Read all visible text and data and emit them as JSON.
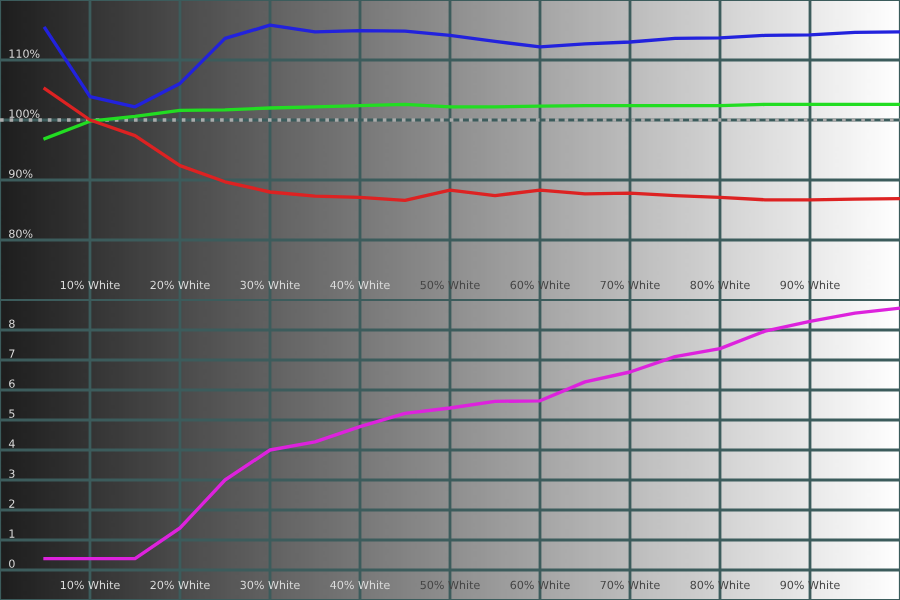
{
  "chart_data": [
    {
      "type": "line",
      "x": [
        5,
        10,
        15,
        20,
        25,
        30,
        35,
        40,
        45,
        50,
        55,
        60,
        65,
        70,
        75,
        80,
        85,
        90,
        95,
        100
      ],
      "series": [
        {
          "color": "#2222dd",
          "values": [
            115.3,
            103.9,
            102.2,
            106.1,
            113.6,
            115.8,
            114.7,
            114.9,
            114.8,
            114.1,
            113.1,
            112.2,
            112.7,
            113.0,
            113.6,
            113.7,
            114.1,
            114.2,
            114.6,
            114.7
          ]
        },
        {
          "color": "#22dd22",
          "values": [
            96.9,
            99.8,
            100.6,
            101.6,
            101.7,
            102.0,
            102.2,
            102.4,
            102.6,
            102.2,
            102.2,
            102.3,
            102.4,
            102.4,
            102.4,
            102.4,
            102.6,
            102.6,
            102.6,
            102.6
          ]
        },
        {
          "color": "#dd2222",
          "values": [
            105.2,
            100.0,
            97.4,
            92.4,
            89.7,
            88.0,
            87.3,
            87.1,
            86.6,
            88.3,
            87.4,
            88.3,
            87.7,
            87.8,
            87.4,
            87.1,
            86.7,
            86.7,
            86.8,
            86.9
          ]
        }
      ],
      "xlim": [
        0,
        100
      ],
      "ylim": [
        70,
        120
      ],
      "xticks": [
        {
          "value": 10,
          "label": "10% White"
        },
        {
          "value": 20,
          "label": "20% White"
        },
        {
          "value": 30,
          "label": "30% White"
        },
        {
          "value": 40,
          "label": "40% White"
        },
        {
          "value": 50,
          "label": "50% White"
        },
        {
          "value": 60,
          "label": "60% White"
        },
        {
          "value": 70,
          "label": "70% White"
        },
        {
          "value": 80,
          "label": "80% White"
        },
        {
          "value": 90,
          "label": "90% White"
        }
      ],
      "yticks": [
        {
          "value": 80,
          "label": "80%"
        },
        {
          "value": 90,
          "label": "90%"
        },
        {
          "value": 100,
          "label": "100%"
        },
        {
          "value": 110,
          "label": "110%"
        }
      ],
      "ref_lines": [
        {
          "axis": "y",
          "value": 100,
          "color": "#aaaaaa",
          "line_style": "dotted"
        }
      ],
      "grid": true,
      "line_style": "solid"
    },
    {
      "type": "line",
      "x": [
        5,
        10,
        15,
        20,
        25,
        30,
        35,
        40,
        45,
        50,
        55,
        60,
        65,
        70,
        75,
        80,
        85,
        90,
        95,
        100
      ],
      "series": [
        {
          "color": "#dd22dd",
          "values": [
            0.38,
            0.38,
            0.38,
            1.4,
            3.0,
            4.0,
            4.27,
            4.78,
            5.22,
            5.4,
            5.62,
            5.64,
            6.27,
            6.6,
            7.11,
            7.38,
            7.96,
            8.29,
            8.56,
            8.73
          ]
        }
      ],
      "xlim": [
        0,
        100
      ],
      "ylim": [
        -1,
        9
      ],
      "xticks": [
        {
          "value": 10,
          "label": "10% White"
        },
        {
          "value": 20,
          "label": "20% White"
        },
        {
          "value": 30,
          "label": "30% White"
        },
        {
          "value": 40,
          "label": "40% White"
        },
        {
          "value": 50,
          "label": "50% White"
        },
        {
          "value": 60,
          "label": "60% White"
        },
        {
          "value": 70,
          "label": "70% White"
        },
        {
          "value": 80,
          "label": "80% White"
        },
        {
          "value": 90,
          "label": "90% White"
        }
      ],
      "yticks": [
        0,
        1,
        2,
        3,
        4,
        5,
        6,
        7,
        8
      ],
      "grid": true,
      "line_style": "solid"
    }
  ]
}
